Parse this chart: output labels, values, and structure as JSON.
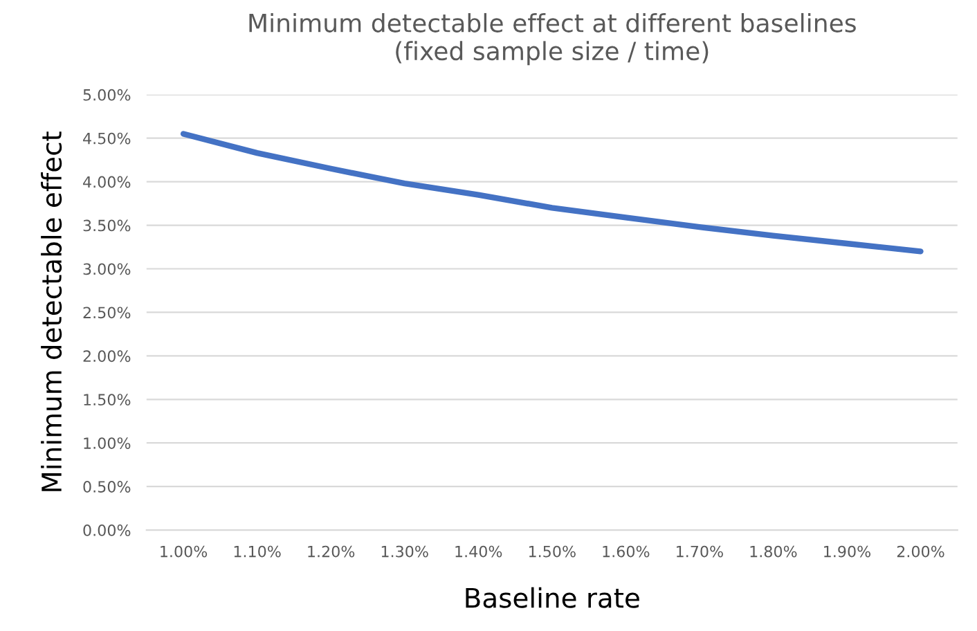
{
  "chart_data": {
    "type": "line",
    "title": "Minimum detectable effect at different baselines\n(fixed sample size / time)",
    "xlabel": "Baseline rate",
    "ylabel": "Minimum detectable effect",
    "categories": [
      "1.00%",
      "1.10%",
      "1.20%",
      "1.30%",
      "1.40%",
      "1.50%",
      "1.60%",
      "1.70%",
      "1.80%",
      "1.90%",
      "2.00%"
    ],
    "series": [
      {
        "color": "#4472c4",
        "values": [
          4.55,
          4.33,
          4.15,
          3.98,
          3.85,
          3.7,
          3.59,
          3.48,
          3.38,
          3.29,
          3.2
        ]
      }
    ],
    "ylim": [
      0,
      5
    ],
    "yticks": [
      {
        "value": 0,
        "label": "0.00%"
      },
      {
        "value": 0.5,
        "label": "0.50%"
      },
      {
        "value": 1,
        "label": "1.00%"
      },
      {
        "value": 1.5,
        "label": "1.50%"
      },
      {
        "value": 2,
        "label": "2.00%"
      },
      {
        "value": 2.5,
        "label": "2.50%"
      },
      {
        "value": 3,
        "label": "3.00%"
      },
      {
        "value": 3.5,
        "label": "3.50%"
      },
      {
        "value": 4,
        "label": "4.00%"
      },
      {
        "value": 4.5,
        "label": "4.50%"
      },
      {
        "value": 5,
        "label": "5.00%"
      }
    ],
    "grid": "y",
    "marker": "none",
    "line_style": "solid"
  }
}
